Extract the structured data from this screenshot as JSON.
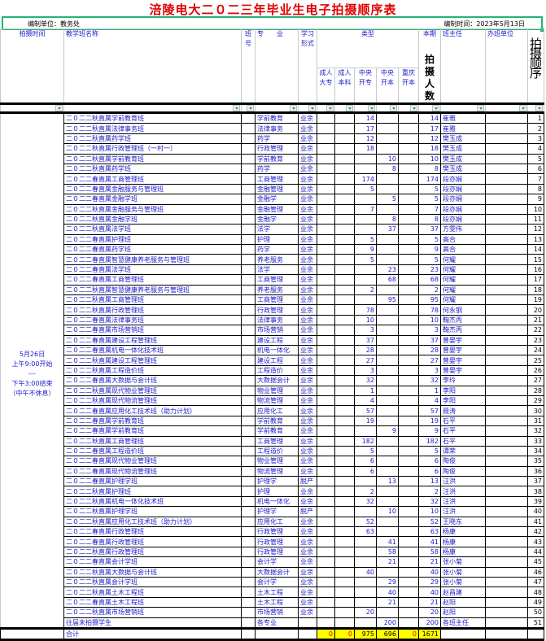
{
  "title": "涪陵电大二０二三年毕业生电子拍摄顺序表",
  "unit_label": "编制单位：教务处",
  "date_label": "编制时间：2023年5月13日",
  "headers": {
    "time": "拍摄时间",
    "class_name": "教学班名称",
    "class_no": "班号",
    "major": "专　　业",
    "study_form": "学习形式",
    "type": "类型",
    "types": [
      "成人大专",
      "成人本科",
      "中央开专",
      "中央开本",
      "重庆开本"
    ],
    "period": "本期",
    "count": "拍摄人数",
    "teacher": "班主任",
    "unit": "办班单位",
    "order": "拍摄顺序"
  },
  "schedule": [
    "5月26日",
    "上午9:00开始",
    "---",
    "下午3:00结束",
    "（中午不休息）"
  ],
  "rows": [
    [
      "二０二二秋直属学前教育班",
      "学前教育",
      "业余",
      "",
      "",
      "14",
      "",
      "",
      "14",
      "崔雅",
      "",
      "1"
    ],
    [
      "二０二二秋直属法律事务班",
      "法律事务",
      "业余",
      "",
      "",
      "17",
      "",
      "",
      "17",
      "崔雅",
      "",
      "2"
    ],
    [
      "二０二二秋直属药学班",
      "药学",
      "业余",
      "",
      "",
      "12",
      "",
      "",
      "12",
      "樊玉成",
      "",
      "3"
    ],
    [
      "二０二二秋直属行政管理班（一村一）",
      "行政管理",
      "业余",
      "",
      "",
      "18",
      "",
      "",
      "18",
      "樊玉成",
      "",
      "4"
    ],
    [
      "二０二二秋直属学前教育班",
      "学前教育",
      "业余",
      "",
      "",
      "",
      "10",
      "",
      "10",
      "樊玉成",
      "",
      "5"
    ],
    [
      "二０二二秋直属药学班",
      "药学",
      "业余",
      "",
      "",
      "",
      "8",
      "",
      "8",
      "樊玉成",
      "",
      "6"
    ],
    [
      "二０二二春直属工商管理班",
      "工商管理",
      "业余",
      "",
      "",
      "174",
      "",
      "",
      "174",
      "段亦娴",
      "",
      "7"
    ],
    [
      "二０二二春直属金融服务与管理班",
      "金融管理",
      "业余",
      "",
      "",
      "5",
      "",
      "",
      "5",
      "段亦娴",
      "",
      "8"
    ],
    [
      "二０二二春直属金融学班",
      "金融学",
      "业余",
      "",
      "",
      "",
      "5",
      "",
      "5",
      "段亦娴",
      "",
      "9"
    ],
    [
      "二０二二秋直属金融服务与管理班",
      "金融管理",
      "业余",
      "",
      "",
      "7",
      "",
      "",
      "7",
      "段亦娴",
      "",
      "10"
    ],
    [
      "二０二二秋直属金融学班",
      "金融学",
      "业余",
      "",
      "",
      "",
      "8",
      "",
      "8",
      "段亦娴",
      "",
      "11"
    ],
    [
      "二０二二秋直属法学班",
      "法学",
      "业余",
      "",
      "",
      "",
      "37",
      "",
      "37",
      "方雯伟",
      "",
      "12"
    ],
    [
      "二０二二春直属护理班",
      "护理",
      "业余",
      "",
      "",
      "5",
      "",
      "",
      "5",
      "高合",
      "",
      "13"
    ],
    [
      "二０二二春直属药学班",
      "药学",
      "业余",
      "",
      "",
      "9",
      "",
      "",
      "9",
      "高合",
      "",
      "14"
    ],
    [
      "二０二二春直属智慧健康养老服务与管理班",
      "养老服务",
      "业余",
      "",
      "",
      "5",
      "",
      "",
      "5",
      "何耀",
      "",
      "15"
    ],
    [
      "二０二二春直属法学班",
      "法学",
      "业余",
      "",
      "",
      "",
      "23",
      "",
      "23",
      "何耀",
      "",
      "16"
    ],
    [
      "二０二二春直属工商管理班",
      "工商管理",
      "业余",
      "",
      "",
      "",
      "68",
      "",
      "68",
      "何耀",
      "",
      "17"
    ],
    [
      "二０二二秋直属智慧健康养老服务与管理班",
      "养老服务",
      "业余",
      "",
      "",
      "2",
      "",
      "",
      "2",
      "何耀",
      "",
      "18"
    ],
    [
      "二０二二秋直属工商管理班",
      "工商管理",
      "业余",
      "",
      "",
      "",
      "95",
      "",
      "95",
      "何耀",
      "",
      "19"
    ],
    [
      "二０二二秋直属行政管理班",
      "行政管理",
      "业余",
      "",
      "",
      "78",
      "",
      "",
      "78",
      "何永钢",
      "",
      "20"
    ],
    [
      "二０二二春直属法律事务班",
      "法律事务",
      "业余",
      "",
      "",
      "10",
      "",
      "",
      "10",
      "鞠杰丙",
      "",
      "21"
    ],
    [
      "二０二二春直属市场营销班",
      "市场营销",
      "业余",
      "",
      "",
      "3",
      "",
      "",
      "3",
      "鞠杰丙",
      "",
      "22"
    ],
    [
      "二０二二春直属建设工程管理班",
      "建设工程",
      "业余",
      "",
      "",
      "37",
      "",
      "",
      "37",
      "曾晏宇",
      "",
      "23"
    ],
    [
      "二０二二春直属机电一体化技术班",
      "机电一体化",
      "业余",
      "",
      "",
      "28",
      "",
      "",
      "28",
      "曾晏宇",
      "",
      "24"
    ],
    [
      "二０二二秋直属建设工程管理班",
      "建设工程",
      "业余",
      "",
      "",
      "27",
      "",
      "",
      "27",
      "曾晏宇",
      "",
      "25"
    ],
    [
      "二０二二秋直属工程造价班",
      "工程造价",
      "业余",
      "",
      "",
      "3",
      "",
      "",
      "3",
      "曾晏宇",
      "",
      "26"
    ],
    [
      "二０二二春直属大数据与会计班",
      "大数据会计",
      "业余",
      "",
      "",
      "32",
      "",
      "",
      "32",
      "李玲",
      "",
      "27"
    ],
    [
      "二０二二秋直属现代物业管理班",
      "物业管理",
      "业余",
      "",
      "",
      "1",
      "",
      "",
      "1",
      "李阳",
      "",
      "28"
    ],
    [
      "二０二二秋直属现代物流管理班",
      "物流管理",
      "业余",
      "",
      "",
      "4",
      "",
      "",
      "4",
      "李阳",
      "",
      "29"
    ],
    [
      "二０二二春直属应用化工技术班（助力计划）",
      "应用化工",
      "业余",
      "",
      "",
      "57",
      "",
      "",
      "57",
      "聂涛",
      "",
      "30"
    ],
    [
      "二０二二春直属学前教育班",
      "学前教育",
      "业余",
      "",
      "",
      "19",
      "",
      "",
      "19",
      "石平",
      "",
      "31"
    ],
    [
      "二０二二春直属学前教育班",
      "学前教育",
      "业余",
      "",
      "",
      "",
      "9",
      "",
      "9",
      "石平",
      "",
      "32"
    ],
    [
      "二０二二秋直属工商管理班",
      "工商管理",
      "业余",
      "",
      "",
      "182",
      "",
      "",
      "182",
      "石平",
      "",
      "33"
    ],
    [
      "二０二二春直属工程造价班",
      "工程造价",
      "业余",
      "",
      "",
      "5",
      "",
      "",
      "5",
      "谭荣",
      "",
      "34"
    ],
    [
      "二０二二春直属现代物业管理班",
      "物业管理",
      "业余",
      "",
      "",
      "6",
      "",
      "",
      "6",
      "陶俊",
      "",
      "35"
    ],
    [
      "二０二二春直属现代物流管理班",
      "物流管理",
      "业余",
      "",
      "",
      "6",
      "",
      "",
      "6",
      "陶俊",
      "",
      "36"
    ],
    [
      "二０二二春直属护理学班",
      "护理学",
      "脱产",
      "",
      "",
      "",
      "13",
      "",
      "13",
      "汪洪",
      "",
      "37"
    ],
    [
      "二０二二秋直属护理班",
      "护理",
      "业余",
      "",
      "",
      "2",
      "",
      "",
      "2",
      "汪洪",
      "",
      "38"
    ],
    [
      "二０二二秋直属机电一体化技术班",
      "机电一体化",
      "业余",
      "",
      "",
      "32",
      "",
      "",
      "32",
      "汪洪",
      "",
      "39"
    ],
    [
      "二０二二秋直属护理学班",
      "护理学",
      "脱产",
      "",
      "",
      "",
      "10",
      "",
      "10",
      "汪洪",
      "",
      "40"
    ],
    [
      "二０二二秋直属应用化工技术班（助力计划）",
      "应用化工",
      "业余",
      "",
      "",
      "52",
      "",
      "",
      "52",
      "王晓东",
      "",
      "41"
    ],
    [
      "二０二二春直属行政管理班",
      "行政管理",
      "业余",
      "",
      "",
      "63",
      "",
      "",
      "63",
      "杨康",
      "",
      "42"
    ],
    [
      "二０二二春直属行政管理班",
      "行政管理",
      "业余",
      "",
      "",
      "",
      "41",
      "",
      "41",
      "杨康",
      "",
      "43"
    ],
    [
      "二０二二秋直属行政管理班",
      "行政管理",
      "业余",
      "",
      "",
      "",
      "58",
      "",
      "58",
      "杨康",
      "",
      "44"
    ],
    [
      "二０二二春直属会计学班",
      "会计学",
      "业余",
      "",
      "",
      "",
      "21",
      "",
      "21",
      "张小菊",
      "",
      "45"
    ],
    [
      "二０二二秋直属大数据与会计班",
      "大数据会计",
      "业余",
      "",
      "",
      "40",
      "",
      "",
      "40",
      "张小菊",
      "",
      "46"
    ],
    [
      "二０二二秋直属会计学班",
      "会计学",
      "业余",
      "",
      "",
      "",
      "29",
      "",
      "29",
      "张小菊",
      "",
      "47"
    ],
    [
      "二０二二秋直属土木工程班",
      "土木工程",
      "业余",
      "",
      "",
      "",
      "40",
      "",
      "40",
      "赵昌建",
      "",
      "48"
    ],
    [
      "二０二二春直属土木工程班",
      "土木工程",
      "业余",
      "",
      "",
      "",
      "21",
      "",
      "21",
      "赵阳",
      "",
      "49"
    ],
    [
      "二０二二秋直属市场营销班",
      "市场营销",
      "业余",
      "",
      "",
      "20",
      "",
      "",
      "20",
      "赵阳",
      "",
      "50"
    ],
    [
      "往届未拍摄学生",
      "各专业",
      "",
      "",
      "",
      "",
      "200",
      "",
      "200",
      "各班主任",
      "",
      "51"
    ]
  ],
  "total": {
    "label": "合计",
    "values": [
      "0",
      "0",
      "975",
      "696",
      "0",
      "1671"
    ]
  },
  "colors": {
    "title": "#e00000",
    "text": "#1a1acc",
    "selection": "#20b474",
    "total_fill": "#ffff00"
  }
}
